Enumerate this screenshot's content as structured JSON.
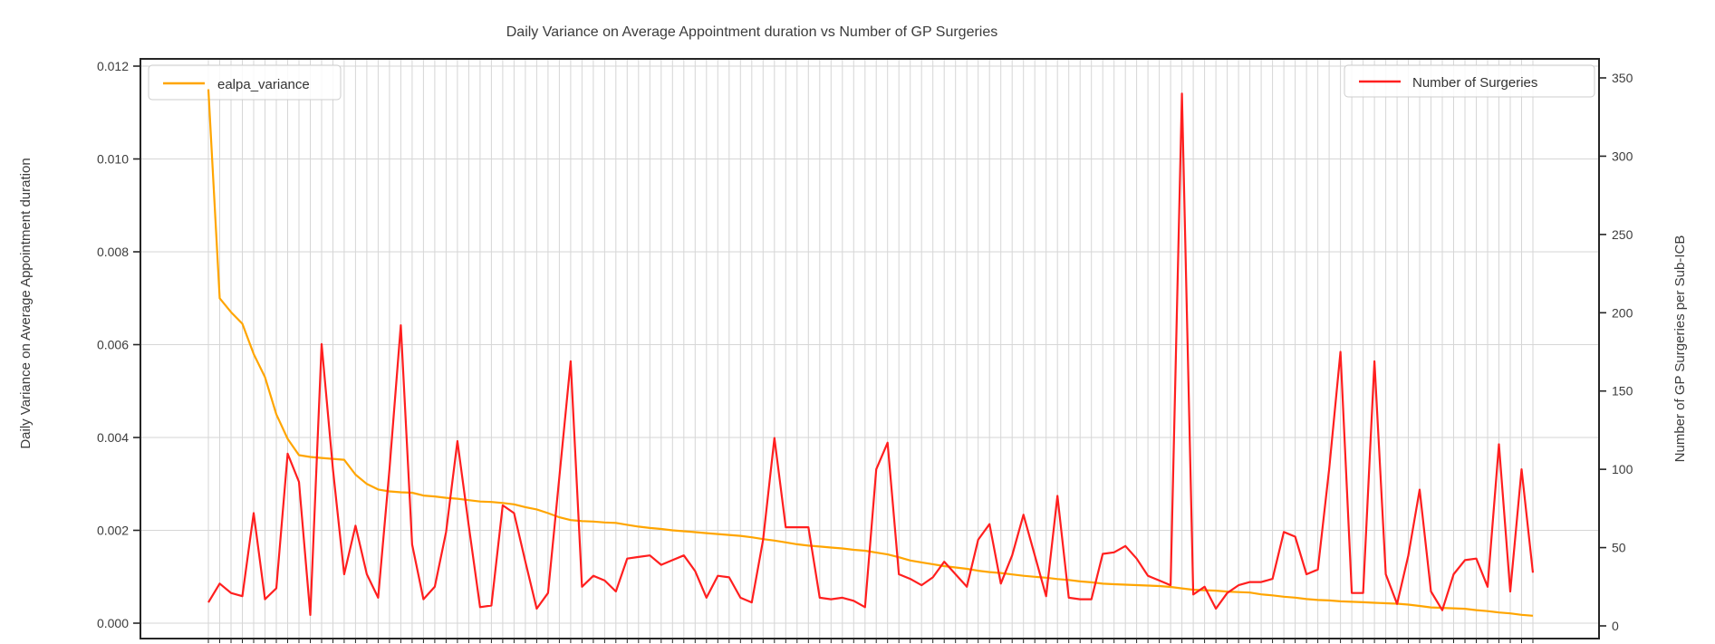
{
  "title": "Daily Variance on Average Appointment duration vs Number of GP Surgeries",
  "legend_left": {
    "label": "ealpa_variance"
  },
  "legend_right": {
    "label": "Number of Surgeries"
  },
  "colors": {
    "orange_series": "#ffa500",
    "red_series": "#ff1f1f",
    "grid": "#d6d6d6",
    "spine": "#262626",
    "text": "#3c3c3c",
    "legend_border": "#cccccc"
  },
  "chart_data": {
    "type": "line",
    "title": "Daily Variance on Average Appointment duration vs Number of GP Surgeries",
    "x_count": 118,
    "x_tick_labels": [],
    "grid": true,
    "left_axis": {
      "label": "Daily Variance on Average Appointment duration",
      "range": [
        0,
        0.012
      ],
      "tick_values": [
        0,
        0.002,
        0.004,
        0.006,
        0.008,
        0.01,
        0.012
      ],
      "tick_labels": [
        "0.000",
        "0.002",
        "0.004",
        "0.006",
        "0.008",
        "0.010",
        "0.012"
      ]
    },
    "right_axis": {
      "label": "Number of GP Surgeries per Sub-ICB",
      "range": [
        0,
        350
      ],
      "tick_values": [
        0,
        50,
        100,
        150,
        200,
        250,
        300,
        350
      ],
      "tick_labels": [
        "0",
        "50",
        "100",
        "150",
        "200",
        "250",
        "300",
        "350"
      ]
    },
    "legend_positions": [
      "top-left",
      "top-right"
    ],
    "series": [
      {
        "name": "ealpa_variance",
        "axis": "left",
        "color": "#ffa500",
        "values": [
          0.0115,
          0.007,
          0.0067,
          0.00645,
          0.0058,
          0.0053,
          0.0045,
          0.00397,
          0.00362,
          0.00358,
          0.00356,
          0.00354,
          0.00352,
          0.0032,
          0.003,
          0.00288,
          0.00284,
          0.00282,
          0.00281,
          0.00275,
          0.00273,
          0.0027,
          0.00268,
          0.00265,
          0.00262,
          0.00261,
          0.00259,
          0.00256,
          0.0025,
          0.00245,
          0.00237,
          0.00228,
          0.00222,
          0.0022,
          0.00219,
          0.00217,
          0.00216,
          0.00212,
          0.00208,
          0.00205,
          0.00203,
          0.002,
          0.00198,
          0.00196,
          0.00194,
          0.00192,
          0.0019,
          0.00188,
          0.00185,
          0.00181,
          0.00178,
          0.00174,
          0.0017,
          0.00167,
          0.00165,
          0.00163,
          0.00161,
          0.00158,
          0.00156,
          0.00152,
          0.00148,
          0.00142,
          0.00135,
          0.00131,
          0.00127,
          0.00123,
          0.0012,
          0.00117,
          0.00113,
          0.0011,
          0.00108,
          0.00105,
          0.00102,
          0.001,
          0.00098,
          0.00095,
          0.00093,
          0.0009,
          0.00088,
          0.00085,
          0.00084,
          0.00083,
          0.00082,
          0.00081,
          0.0008,
          0.00078,
          0.00075,
          0.00072,
          0.00071,
          0.0007,
          0.00068,
          0.00067,
          0.00066,
          0.00062,
          0.0006,
          0.00057,
          0.00055,
          0.00052,
          0.0005,
          0.00049,
          0.00047,
          0.00046,
          0.00045,
          0.00044,
          0.00043,
          0.00042,
          0.0004,
          0.00037,
          0.00034,
          0.00033,
          0.00032,
          0.00031,
          0.00028,
          0.00026,
          0.00023,
          0.00021,
          0.00018,
          0.00016
        ]
      },
      {
        "name": "Number of Surgeries",
        "axis": "right",
        "color": "#ff1f1f",
        "values": [
          15,
          27,
          21,
          19,
          72,
          17,
          24,
          110,
          92,
          7,
          180,
          100,
          33,
          64,
          33,
          18,
          100,
          192,
          52,
          17,
          25,
          60,
          118,
          64,
          12,
          13,
          77,
          72,
          41,
          11,
          21,
          95,
          169,
          25,
          32,
          29,
          22,
          43,
          44,
          45,
          39,
          42,
          45,
          35,
          18,
          32,
          31,
          18,
          15,
          55,
          120,
          63,
          63,
          63,
          18,
          17,
          18,
          16,
          12,
          100,
          117,
          33,
          30,
          26,
          31,
          41,
          33,
          25,
          55,
          65,
          27,
          45,
          71,
          45,
          19,
          83,
          18,
          17,
          17,
          46,
          47,
          51,
          43,
          32,
          29,
          26,
          340,
          20,
          25,
          11,
          21,
          26,
          28,
          28,
          30,
          60,
          57,
          33,
          36,
          100,
          175,
          21,
          21,
          169,
          33,
          14,
          45,
          87,
          22,
          10,
          33,
          42,
          43,
          25,
          116,
          22,
          100,
          34
        ]
      }
    ]
  }
}
